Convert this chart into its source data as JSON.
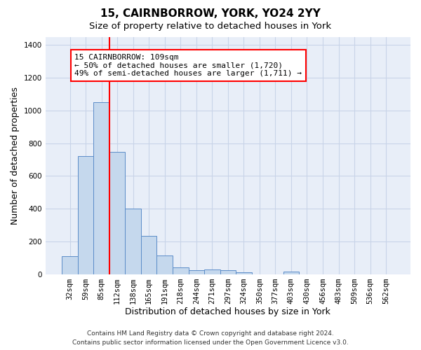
{
  "title": "15, CAIRNBORROW, YORK, YO24 2YY",
  "subtitle": "Size of property relative to detached houses in York",
  "xlabel": "Distribution of detached houses by size in York",
  "ylabel": "Number of detached properties",
  "footer_line1": "Contains HM Land Registry data © Crown copyright and database right 2024.",
  "footer_line2": "Contains public sector information licensed under the Open Government Licence v3.0.",
  "categories": [
    "32sqm",
    "59sqm",
    "85sqm",
    "112sqm",
    "138sqm",
    "165sqm",
    "191sqm",
    "218sqm",
    "244sqm",
    "271sqm",
    "297sqm",
    "324sqm",
    "350sqm",
    "377sqm",
    "403sqm",
    "430sqm",
    "456sqm",
    "483sqm",
    "509sqm",
    "536sqm",
    "562sqm"
  ],
  "values": [
    108,
    722,
    1050,
    748,
    400,
    235,
    112,
    42,
    25,
    28,
    22,
    10,
    0,
    0,
    15,
    0,
    0,
    0,
    0,
    0,
    0
  ],
  "bar_color": "#c5d8ed",
  "bar_edge_color": "#5b8cc8",
  "grid_color": "#c8d4e8",
  "background_color": "#e8eef8",
  "red_line_index": 3,
  "annotation_box_text": "15 CAIRNBORROW: 109sqm\n← 50% of detached houses are smaller (1,720)\n49% of semi-detached houses are larger (1,711) →",
  "ylim": [
    0,
    1450
  ],
  "yticks": [
    0,
    200,
    400,
    600,
    800,
    1000,
    1200,
    1400
  ],
  "title_fontsize": 11,
  "subtitle_fontsize": 9.5,
  "annotation_fontsize": 8,
  "tick_fontsize": 7.5,
  "ylabel_fontsize": 9,
  "xlabel_fontsize": 9,
  "footer_fontsize": 6.5
}
